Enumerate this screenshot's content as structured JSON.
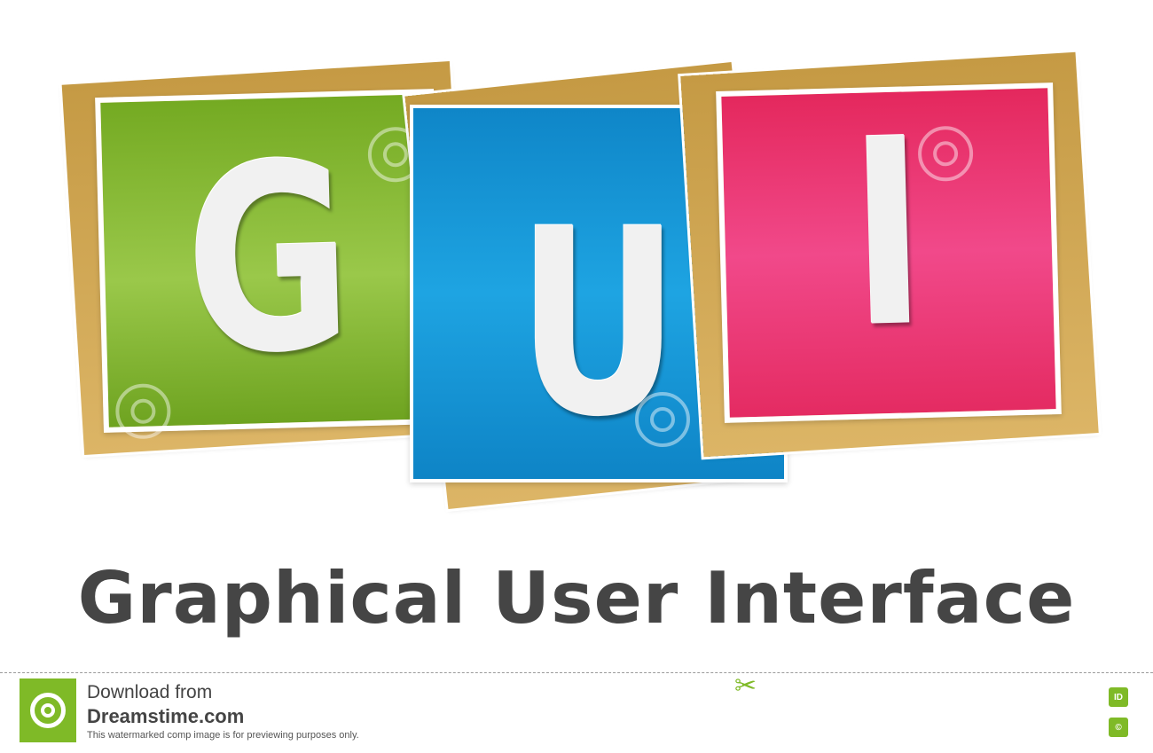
{
  "blocks": [
    {
      "letter": "G",
      "color": "#8cbd3a"
    },
    {
      "letter": "U",
      "color": "#1a9bdc"
    },
    {
      "letter": "I",
      "color": "#ea3a74"
    }
  ],
  "gold_color": "#d1a756",
  "title": "Graphical User Interface",
  "footer": {
    "line1": "Download from",
    "line2": "Dreamstime.com",
    "line3": "This watermarked comp image is for previewing purposes only.",
    "badge_id": "ID",
    "badge_copyright": "©",
    "accent": "#7fba27"
  }
}
